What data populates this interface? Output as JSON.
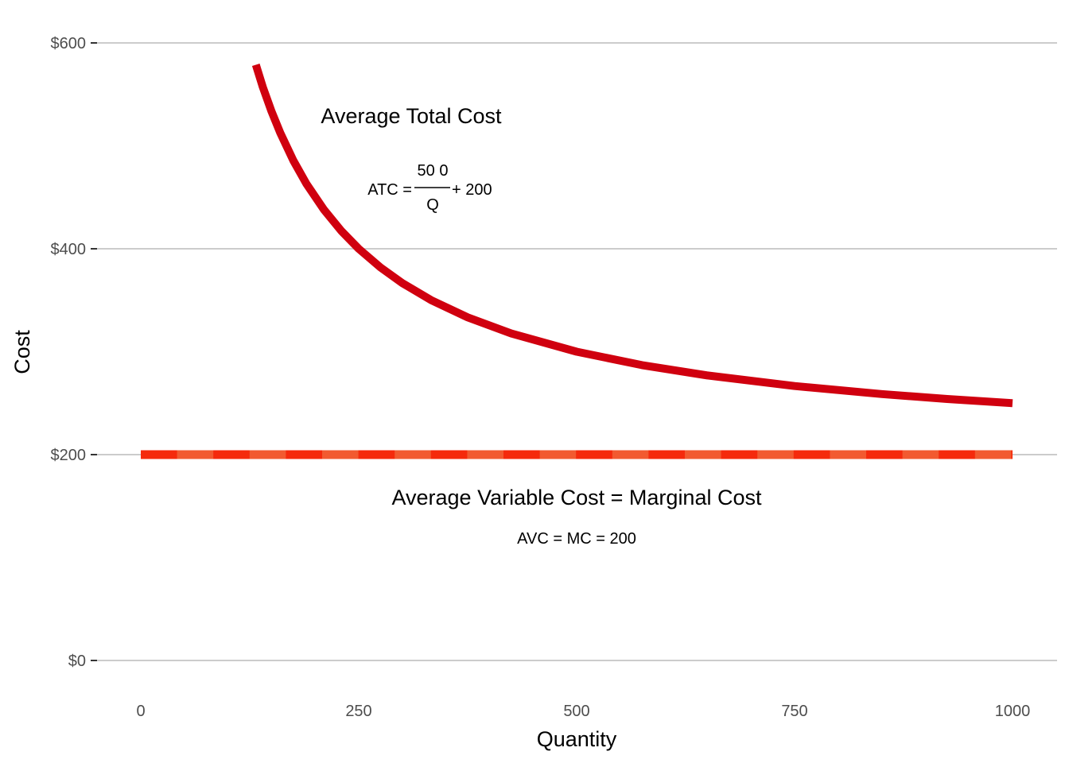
{
  "chart_data": {
    "type": "line",
    "title": "",
    "xlabel": "Quantity",
    "ylabel": "Cost",
    "xlim": [
      0,
      1000
    ],
    "ylim": [
      0,
      600
    ],
    "x_ticks": [
      0,
      250,
      500,
      750,
      1000
    ],
    "x_tick_labels": [
      "0",
      "250",
      "500",
      "750",
      "1000"
    ],
    "y_ticks": [
      0,
      200,
      400,
      600
    ],
    "y_tick_labels": [
      "$0",
      "$200",
      "$400",
      "$600"
    ],
    "grid": "horizontal major only",
    "legend": "none",
    "series": [
      {
        "key": "atc",
        "style": "solid",
        "color": "#d0000f",
        "formula_parts": {
          "fixed": 50000,
          "variable": 200
        },
        "x": [
          132,
          140,
          150,
          160,
          175,
          190,
          210,
          230,
          250,
          275,
          300,
          333,
          375,
          425,
          500,
          575,
          650,
          750,
          850,
          925,
          1000
        ],
        "y": [
          578.79,
          557.14,
          533.33,
          512.5,
          485.71,
          463.16,
          438.1,
          417.39,
          400,
          381.82,
          366.67,
          350.15,
          333.33,
          317.65,
          300,
          286.96,
          276.92,
          266.67,
          258.82,
          254.05,
          250
        ]
      },
      {
        "key": "avc_mc",
        "style": "dashed",
        "color": "#f52a0c",
        "color_alt": "#f25a30",
        "x": [
          0,
          1000
        ],
        "y": [
          200,
          200
        ]
      }
    ],
    "annotations": {
      "atc_title": "Average Total Cost",
      "atc_lhs": "ATC =",
      "atc_num": "50 0",
      "atc_den": "Q",
      "atc_rhs": "+ 200",
      "avc_title": "Average Variable Cost = Marginal Cost",
      "avc_formula": "AVC = MC = 200"
    }
  }
}
